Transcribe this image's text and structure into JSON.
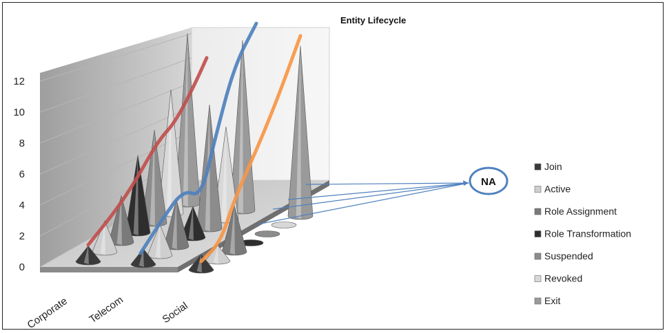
{
  "chart_data": {
    "type": "bar",
    "subtype": "3d-cone",
    "title": "Entity Lifecycle",
    "categories": [
      "Corporate",
      "Telecom",
      "Social"
    ],
    "y_ticks": [
      "0",
      "2",
      "4",
      "6",
      "8",
      "10",
      "12"
    ],
    "ylim": [
      0,
      14
    ],
    "grid": true,
    "legend_position": "right",
    "series": [
      {
        "name": "Join",
        "color": "#3a3a3a",
        "values": [
          1,
          1,
          1
        ]
      },
      {
        "name": "Active",
        "color": "#cfcfcf",
        "values": [
          2,
          2,
          1
        ]
      },
      {
        "name": "Role Assignment",
        "color": "#7a7a7a",
        "values": [
          3,
          3,
          3
        ]
      },
      {
        "name": "Role Transformation",
        "color": "#2e2e2e",
        "values": [
          5,
          2,
          0
        ]
      },
      {
        "name": "Suspended",
        "color": "#8c8c8c",
        "values": [
          6,
          8,
          0
        ]
      },
      {
        "name": "Revoked",
        "color": "#d8d8d8",
        "values": [
          8,
          6,
          0
        ]
      },
      {
        "name": "Exit",
        "color": "#9a9a9a",
        "values": [
          11,
          11,
          11
        ]
      }
    ],
    "trend_lines": [
      {
        "category": "Corporate",
        "color": "#c0504d"
      },
      {
        "category": "Telecom",
        "color": "#4f81bd"
      },
      {
        "category": "Social",
        "color": "#f79646"
      }
    ],
    "annotation": {
      "text": "NA",
      "points_to": "Social zero values"
    }
  }
}
